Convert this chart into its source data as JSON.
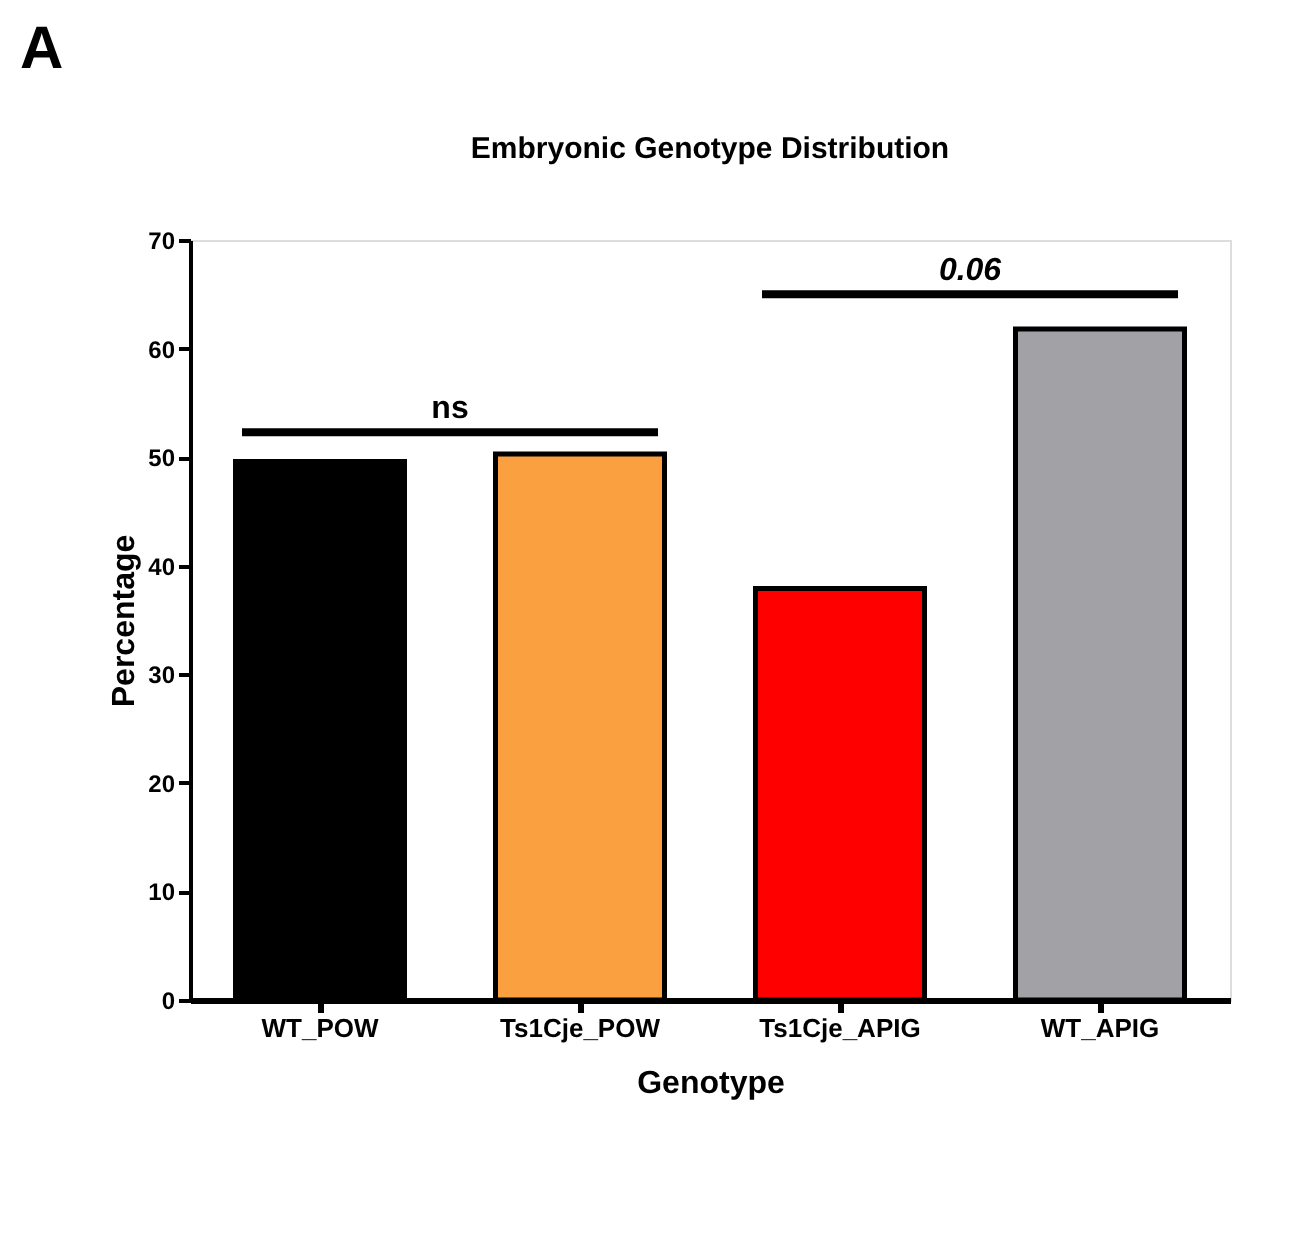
{
  "chart_data": {
    "type": "bar",
    "title": "Embryonic Genotype Distribution",
    "xlabel": "Genotype",
    "ylabel": "Percentage",
    "categories": [
      "WT_POW",
      "Ts1Cje_POW",
      "Ts1Cje_APIG",
      "WT_APIG"
    ],
    "values": [
      49.6,
      50.3,
      37.9,
      61.8
    ],
    "colors": [
      "#000000",
      "#fba040",
      "#fe0000",
      "#a2a1a6"
    ],
    "ylim": [
      0,
      70
    ],
    "yticks": [
      0,
      10,
      20,
      30,
      40,
      50,
      60,
      70
    ],
    "grid": false,
    "annotations": [
      "A",
      "ns",
      "0.06"
    ]
  }
}
